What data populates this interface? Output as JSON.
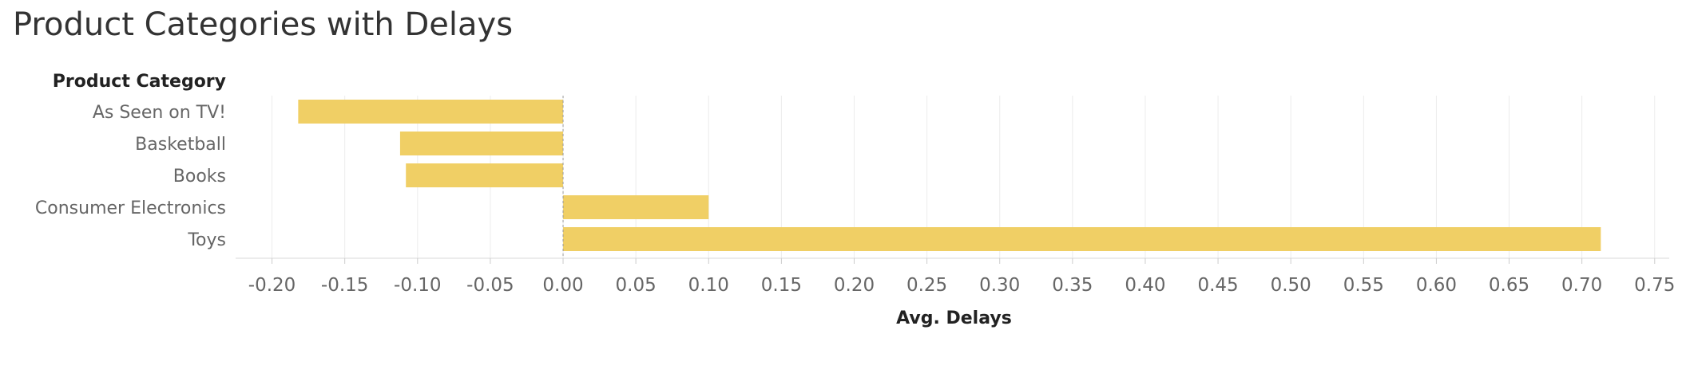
{
  "title": "Product Categories with Delays",
  "chart_data": {
    "type": "bar",
    "orientation": "horizontal",
    "row_header": "Product Category",
    "categories": [
      "As Seen on  TV!",
      "Basketball",
      "Books",
      "Consumer Electronics",
      "Toys"
    ],
    "values": [
      -0.182,
      -0.112,
      -0.108,
      0.1,
      0.713
    ],
    "xlabel": "Avg. Delays",
    "xlim": [
      -0.225,
      0.76
    ],
    "xticks": [
      "-0.20",
      "-0.15",
      "-0.10",
      "-0.05",
      "0.00",
      "0.05",
      "0.10",
      "0.15",
      "0.20",
      "0.25",
      "0.30",
      "0.35",
      "0.40",
      "0.45",
      "0.50",
      "0.55",
      "0.60",
      "0.65",
      "0.70",
      "0.75"
    ],
    "bar_color": "#F0CF65",
    "grid": true
  }
}
